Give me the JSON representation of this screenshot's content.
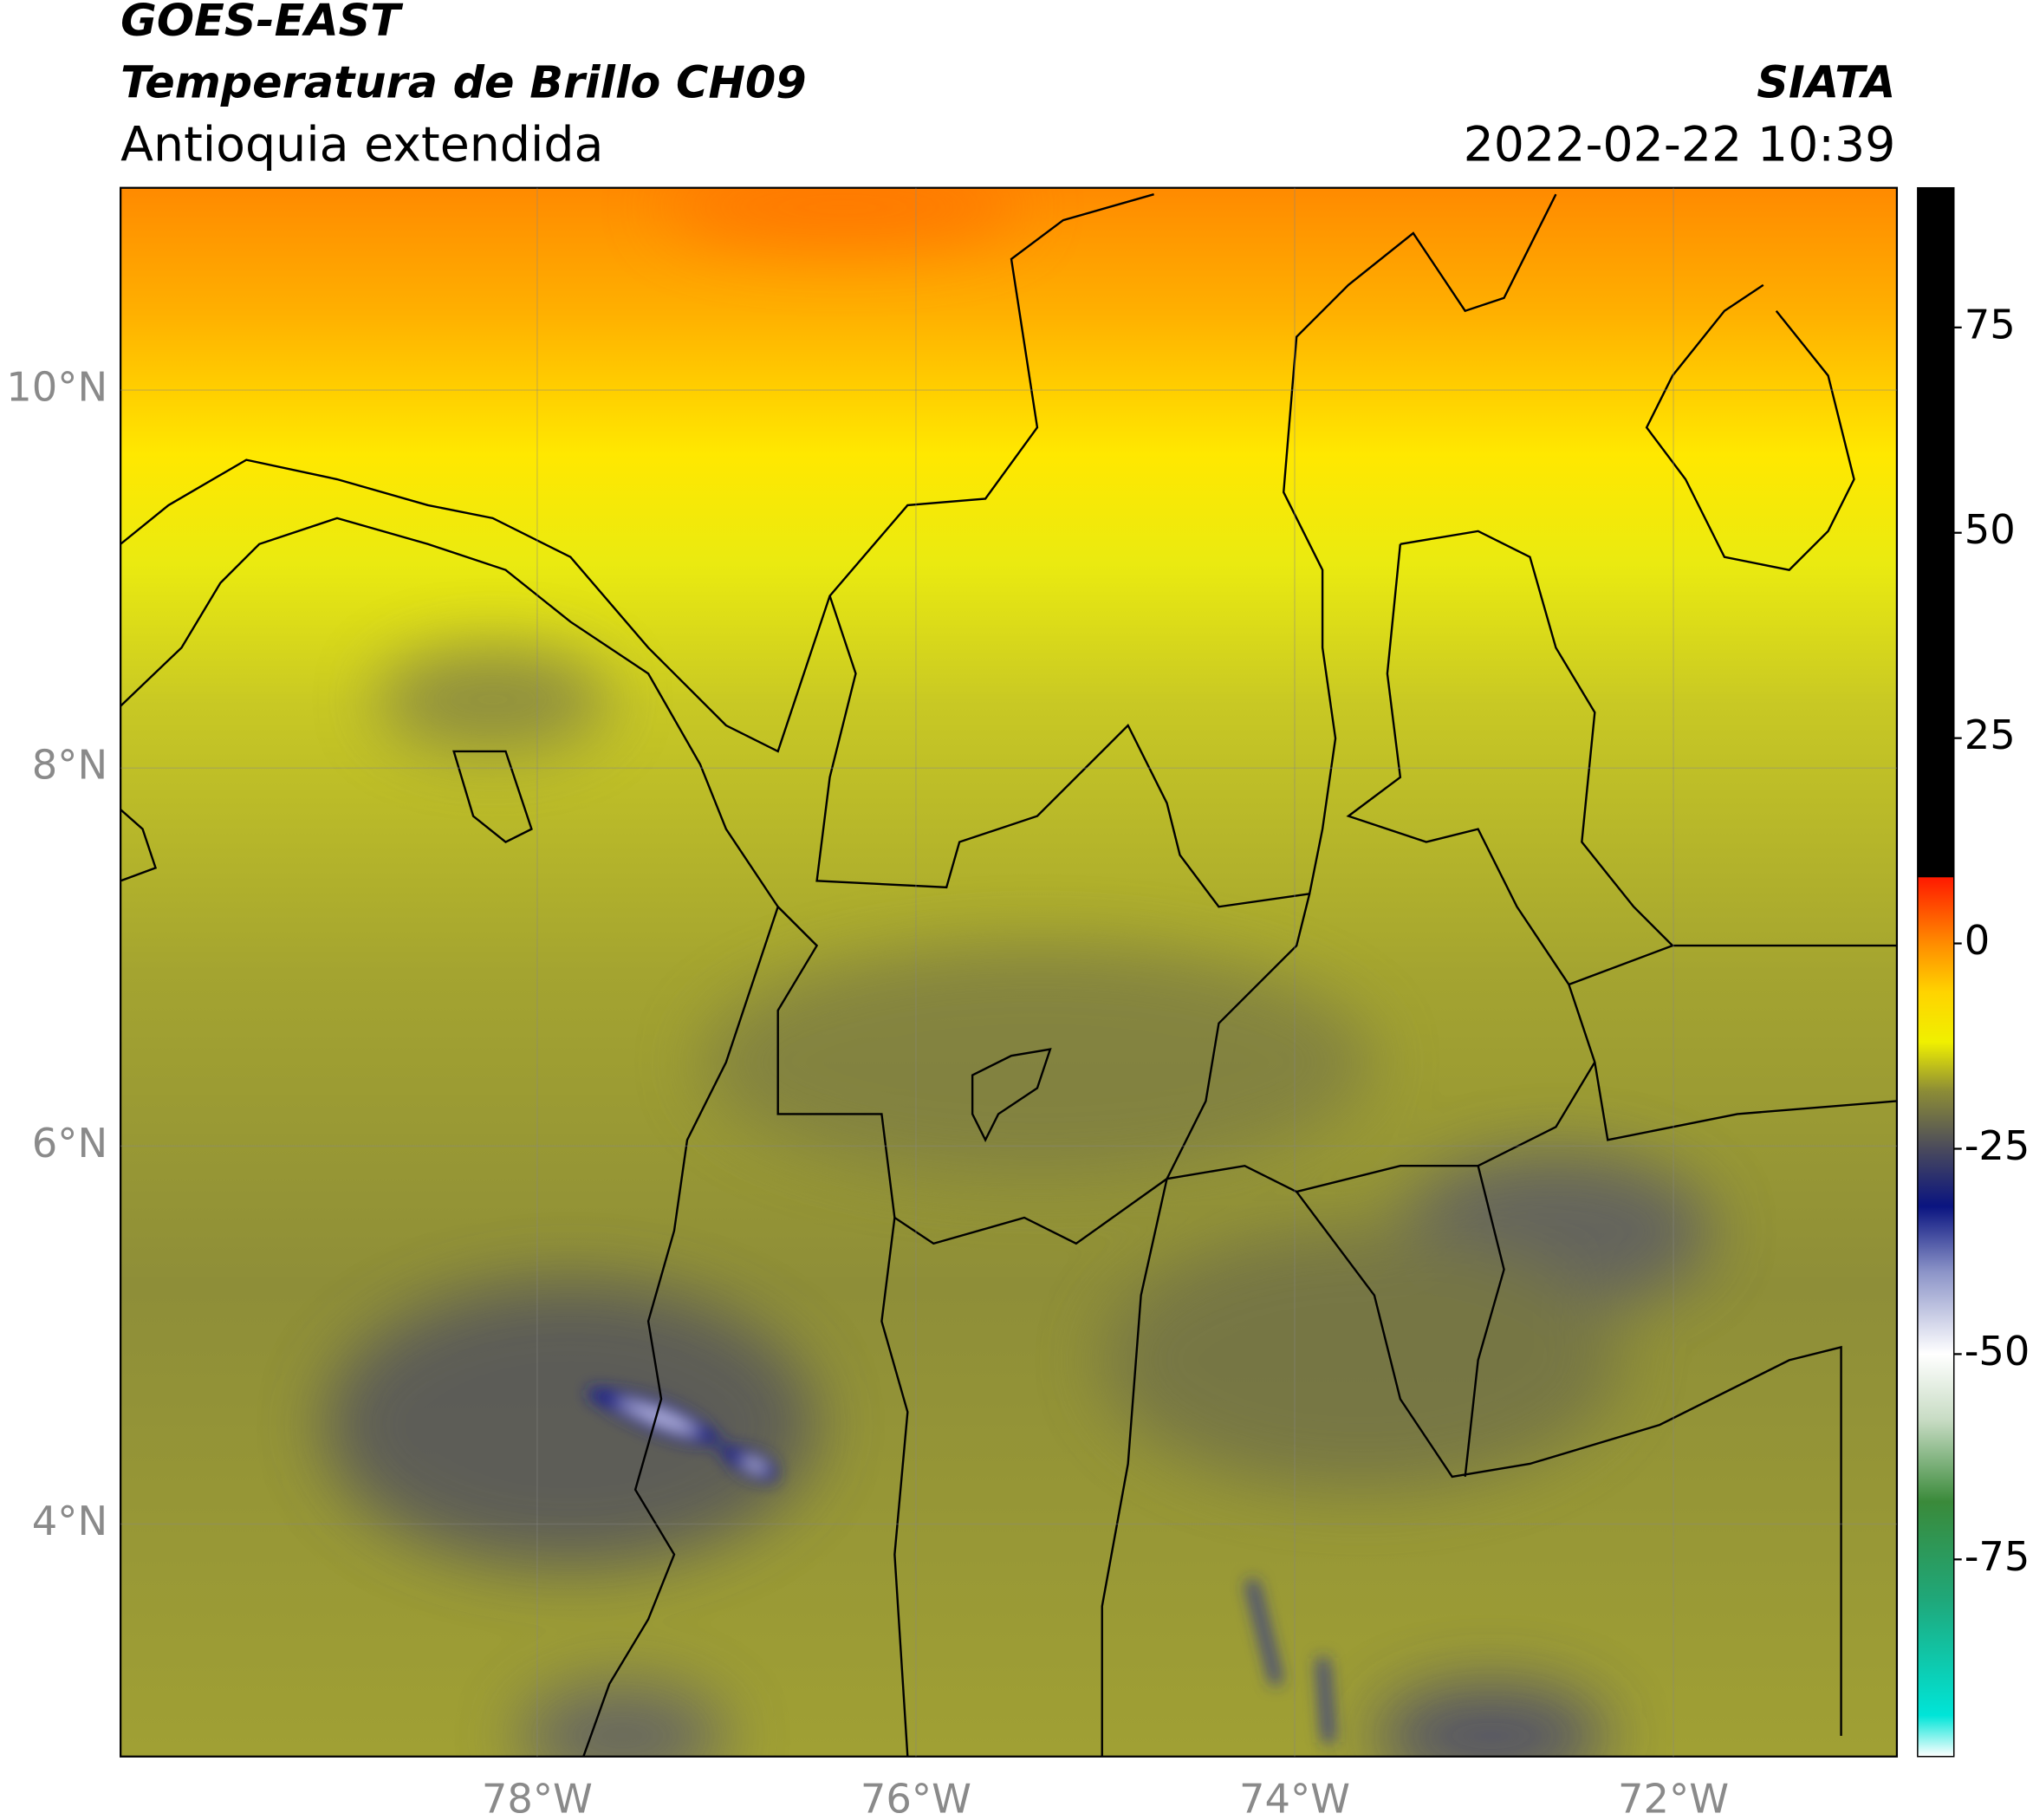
{
  "header": {
    "satellite": "GOES-EAST",
    "product": "Temperatura de Brillo CH09",
    "region": "Antioquia extendida",
    "source": "SIATA",
    "datetime": "2022-02-22 10:39"
  },
  "map": {
    "xlim": [
      -80.2,
      -70.82
    ],
    "ylim": [
      2.77,
      11.07
    ],
    "xticks": [
      {
        "value": -78,
        "label": "78°W"
      },
      {
        "value": -76,
        "label": "76°W"
      },
      {
        "value": -74,
        "label": "74°W"
      },
      {
        "value": -72,
        "label": "72°W"
      }
    ],
    "yticks": [
      {
        "value": 4,
        "label": "4°N"
      },
      {
        "value": 6,
        "label": "6°N"
      },
      {
        "value": 8,
        "label": "8°N"
      },
      {
        "value": 10,
        "label": "10°N"
      }
    ],
    "grid": true
  },
  "colorbar": {
    "lim": [
      -99,
      92
    ],
    "ticks": [
      -75,
      -50,
      -25,
      0,
      25,
      50,
      75
    ],
    "stops": [
      {
        "value": -99,
        "color": "#ffffff"
      },
      {
        "value": -94,
        "color": "#00e5d8"
      },
      {
        "value": -80,
        "color": "#1fa87a"
      },
      {
        "value": -68,
        "color": "#3a8a3a"
      },
      {
        "value": -58,
        "color": "#c8dcc4"
      },
      {
        "value": -50,
        "color": "#ffffff"
      },
      {
        "value": -40,
        "color": "#8c94c8"
      },
      {
        "value": -32,
        "color": "#0a1480"
      },
      {
        "value": -25,
        "color": "#4a4a5c"
      },
      {
        "value": -18,
        "color": "#8c8c36"
      },
      {
        "value": -12,
        "color": "#f0f000"
      },
      {
        "value": -6,
        "color": "#ffd400"
      },
      {
        "value": 0,
        "color": "#ff8c00"
      },
      {
        "value": 8,
        "color": "#ff1a00"
      },
      {
        "value": 8.1,
        "color": "#000000"
      },
      {
        "value": 92,
        "color": "#000000"
      }
    ]
  }
}
